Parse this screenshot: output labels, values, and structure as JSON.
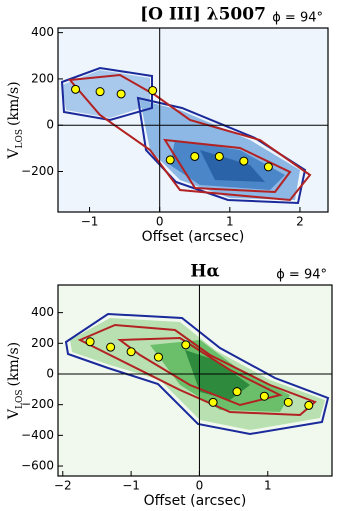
{
  "chart_data": [
    {
      "type": "scatter",
      "title": "[O III] λ5007",
      "annotation": "ϕ = 94°",
      "xlabel": "Offset (arcsec)",
      "ylabel": "V",
      "ylabel_sub": "LOS",
      "ylabel_unit": "(km/s)",
      "x": [
        -1.2,
        -0.85,
        -0.55,
        -0.1,
        0.15,
        0.5,
        0.85,
        1.2,
        1.55
      ],
      "values": [
        155,
        145,
        135,
        150,
        -150,
        -135,
        -135,
        -155,
        -180
      ],
      "color": "#ffff00",
      "xlim": [
        -1.45,
        2.4
      ],
      "xticks": [
        {
          "value": -1,
          "label": "−1"
        },
        0,
        1,
        2
      ],
      "ylim": [
        -375,
        420
      ],
      "yticks": [
        {
          "value": -200,
          "label": "−200"
        },
        0,
        200,
        400
      ]
    },
    {
      "type": "scatter",
      "title": "Hα",
      "annotation": "ϕ = 94°",
      "xlabel": "Offset (arcsec)",
      "ylabel": "V",
      "ylabel_sub": "LOS",
      "ylabel_unit": "(km/s)",
      "x": [
        -1.6,
        -1.3,
        -1.0,
        -0.6,
        -0.2,
        0.2,
        0.55,
        0.95,
        1.3,
        1.6
      ],
      "values": [
        210,
        175,
        145,
        110,
        190,
        -185,
        -115,
        -145,
        -185,
        -205
      ],
      "color": "#ffff00",
      "xlim": [
        -2.07,
        1.94
      ],
      "xticks": [
        {
          "value": -2,
          "label": "−2"
        },
        {
          "value": -1,
          "label": "−1"
        },
        0,
        1
      ],
      "ylim": [
        -665,
        580
      ],
      "yticks": [
        {
          "value": -600,
          "label": "−600"
        },
        {
          "value": -400,
          "label": "−400"
        },
        {
          "value": -200,
          "label": "−200"
        },
        0,
        200,
        400
      ]
    }
  ]
}
